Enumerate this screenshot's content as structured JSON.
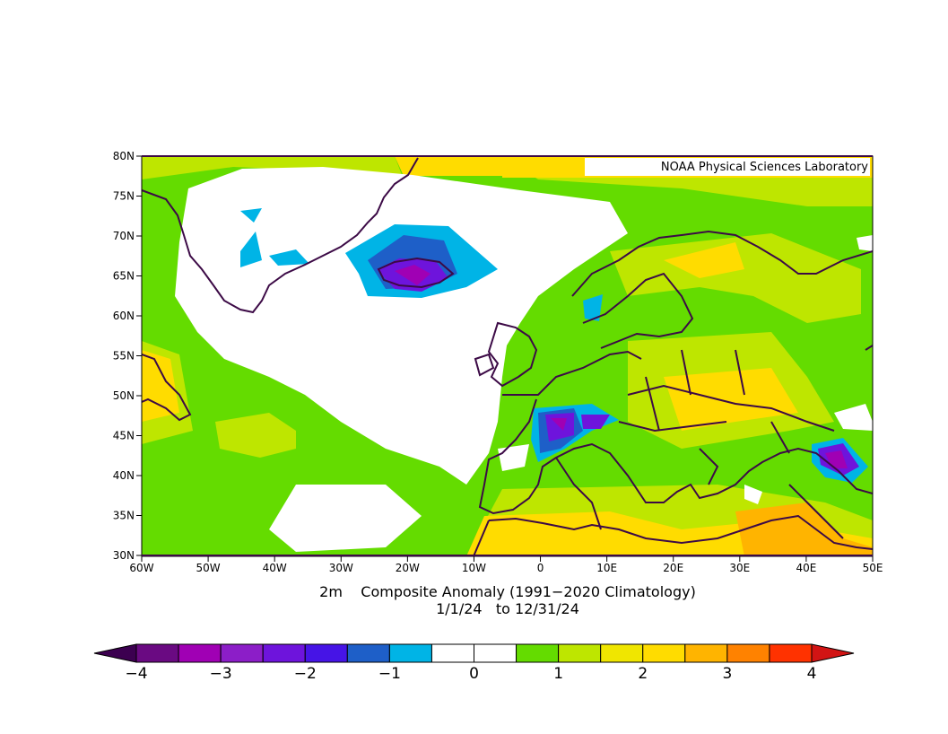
{
  "credit": "NOAA Physical Sciences Laboratory",
  "caption": {
    "line1": "2m    Composite Anomaly (1991−2020 Climatology)",
    "line2": "1/1/24   to 12/31/24"
  },
  "map": {
    "lon_range": [
      -60,
      50
    ],
    "lat_range": [
      30,
      80
    ],
    "lat_ticks": [
      "80N",
      "75N",
      "70N",
      "65N",
      "60N",
      "55N",
      "50N",
      "45N",
      "40N",
      "35N",
      "30N"
    ],
    "lon_ticks": [
      "60W",
      "50W",
      "40W",
      "30W",
      "20W",
      "10W",
      "0",
      "10E",
      "20E",
      "30E",
      "40E",
      "50E"
    ]
  },
  "colorbar": {
    "range": [
      -4,
      4
    ],
    "colors": [
      "#6a0a82",
      "#a000b4",
      "#8c1ec8",
      "#6e14dc",
      "#4614e6",
      "#1e5fc8",
      "#00b4e6",
      "#ffffff",
      "#ffffff",
      "#64dc00",
      "#bee600",
      "#f0e600",
      "#ffdc00",
      "#ffb400",
      "#ff8200",
      "#ff3200"
    ],
    "under_color": "#3c0050",
    "over_color": "#d21414",
    "tick_labels": [
      "−4",
      "−3",
      "−2",
      "−1",
      "0",
      "1",
      "2",
      "3",
      "4"
    ]
  }
}
